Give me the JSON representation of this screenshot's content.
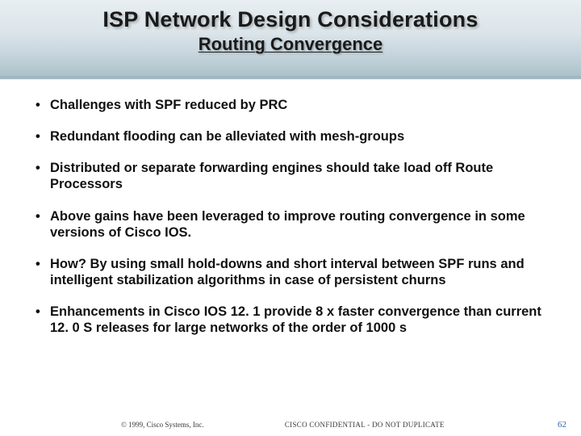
{
  "header": {
    "title": "ISP Network Design Considerations",
    "subtitle": "Routing Convergence"
  },
  "bullets": [
    "Challenges with SPF reduced by PRC",
    "Redundant flooding can be alleviated with mesh-groups",
    "Distributed  or separate forwarding engines should take load off Route Processors",
    "Above gains have been leveraged to improve routing convergence in some versions of  Cisco IOS.",
    "How? By using small hold-downs and short interval between SPF runs and intelligent stabilization algorithms in case of  persistent churns",
    "Enhancements in Cisco IOS 12. 1 provide 8 x faster convergence than current 12. 0 S releases for large networks of the order of 1000 s"
  ],
  "footer": {
    "copyright": "© 1999, Cisco Systems, Inc.",
    "confidential": "CISCO CONFIDENTIAL - DO NOT DUPLICATE",
    "page_number": "62"
  },
  "colors": {
    "header_gradient_top": "#e8eef2",
    "header_gradient_bottom": "#a8bfc8",
    "text": "#111111",
    "page_number": "#2a6aa8",
    "background": "#ffffff"
  },
  "fonts": {
    "title_size_pt": 27,
    "subtitle_size_pt": 22,
    "bullet_size_pt": 16,
    "footer_size_pt": 9
  }
}
